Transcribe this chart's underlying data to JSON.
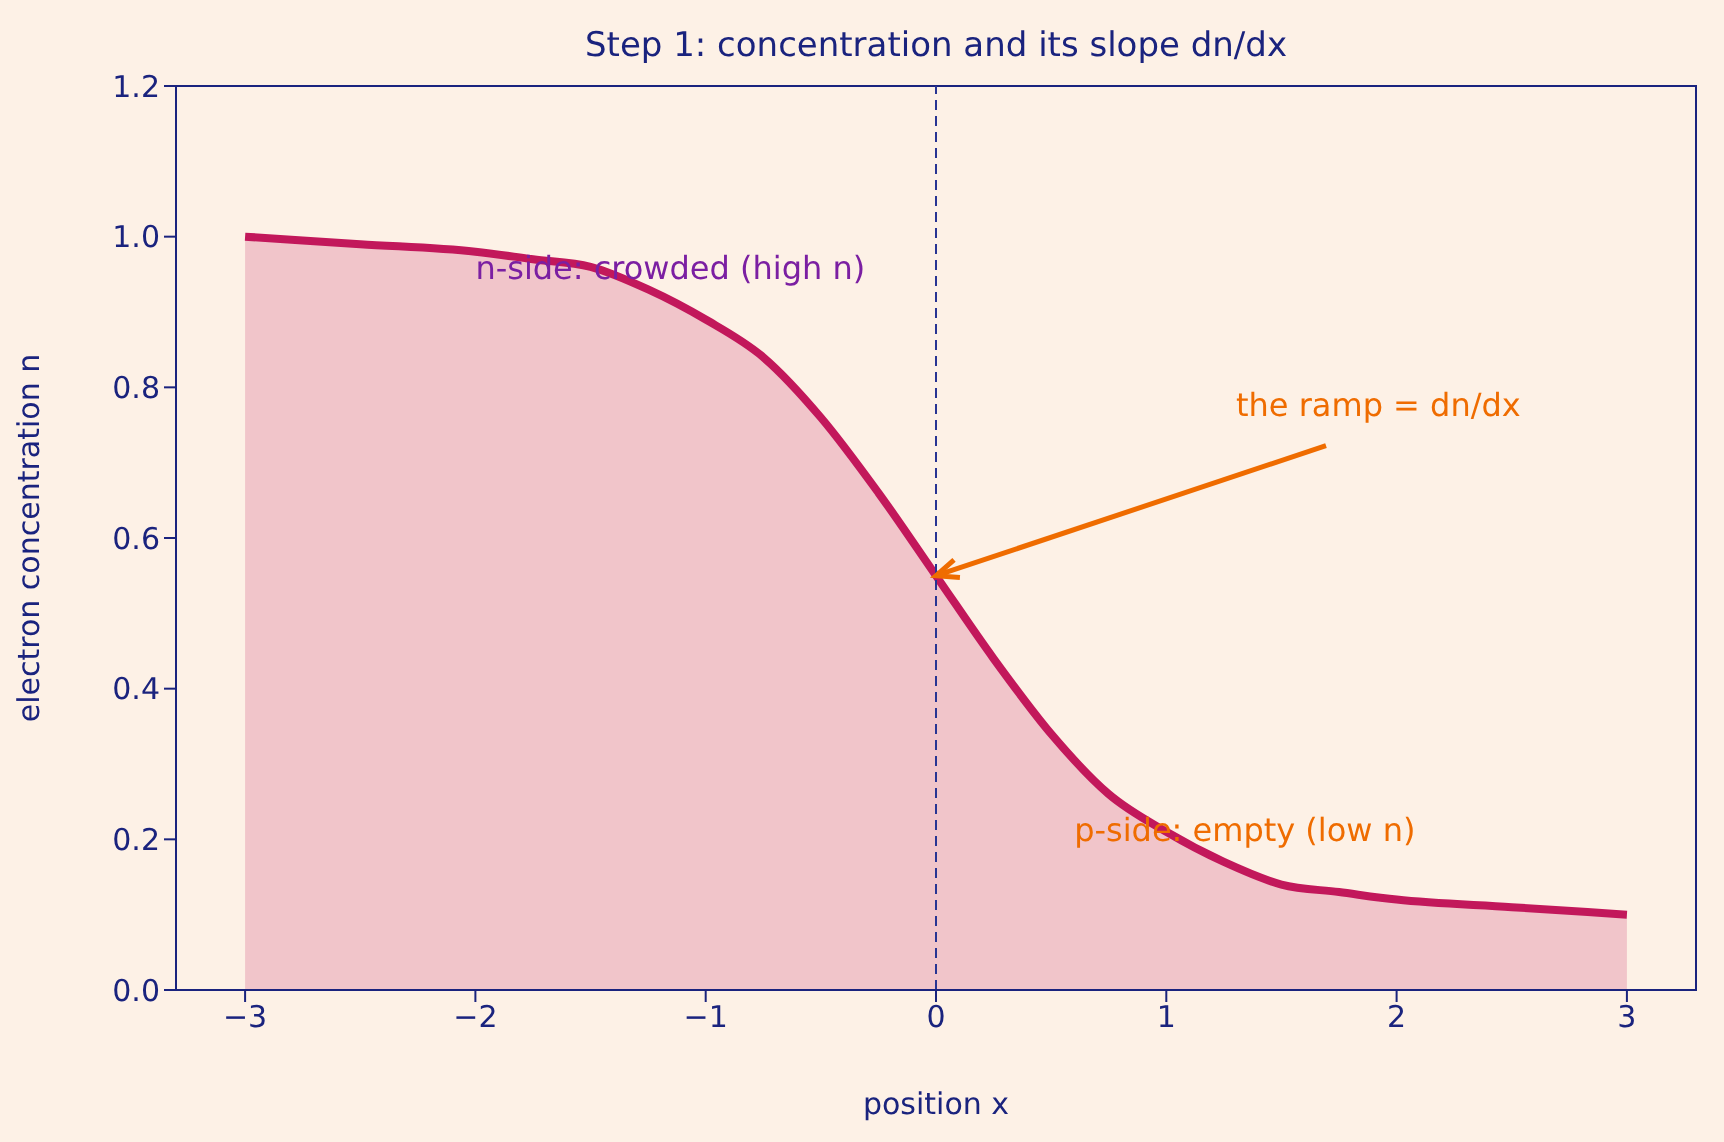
{
  "chart_data": {
    "type": "area",
    "title": "Step 1: concentration and its slope dn/dx",
    "xlabel": "position x",
    "ylabel": "electron concentration n",
    "x": [
      -3,
      -2.5,
      -2,
      -1.75,
      -1.5,
      -1.25,
      -1,
      -0.75,
      -0.5,
      -0.25,
      0,
      0.25,
      0.5,
      0.75,
      1,
      1.25,
      1.5,
      1.75,
      2,
      2.5,
      3
    ],
    "series": [
      {
        "color": "#c2185b",
        "values": [
          1.0,
          0.99,
          0.98,
          0.97,
          0.96,
          0.93,
          0.89,
          0.84,
          0.76,
          0.66,
          0.55,
          0.44,
          0.34,
          0.26,
          0.21,
          0.17,
          0.14,
          0.13,
          0.12,
          0.11,
          0.1
        ]
      }
    ],
    "xlim": [
      -3.3,
      3.3
    ],
    "xticks": [
      {
        "value": -3,
        "label": "−3"
      },
      {
        "value": -2,
        "label": "−2"
      },
      {
        "value": -1,
        "label": "−1"
      },
      0,
      1,
      2,
      3
    ],
    "ylim": [
      0,
      1.2
    ],
    "yticks": [
      {
        "value": 0,
        "label": "0.0"
      },
      0.2,
      0.4,
      0.6,
      0.8,
      {
        "value": 1,
        "label": "1.0"
      },
      {
        "value": 1.2,
        "label": "1.2"
      }
    ],
    "ref_lines": [
      {
        "axis": "x",
        "value": 0,
        "color": "#283593",
        "line_style": "dashed"
      }
    ],
    "annotations": [
      "n-side: crowded (high n)",
      "p-side: empty (low n)",
      {
        "text": "the ramp = dn/dx",
        "x": 0,
        "y": 0.55
      }
    ],
    "grid": false,
    "legend": false,
    "marker": "none",
    "line_style": "solid"
  }
}
